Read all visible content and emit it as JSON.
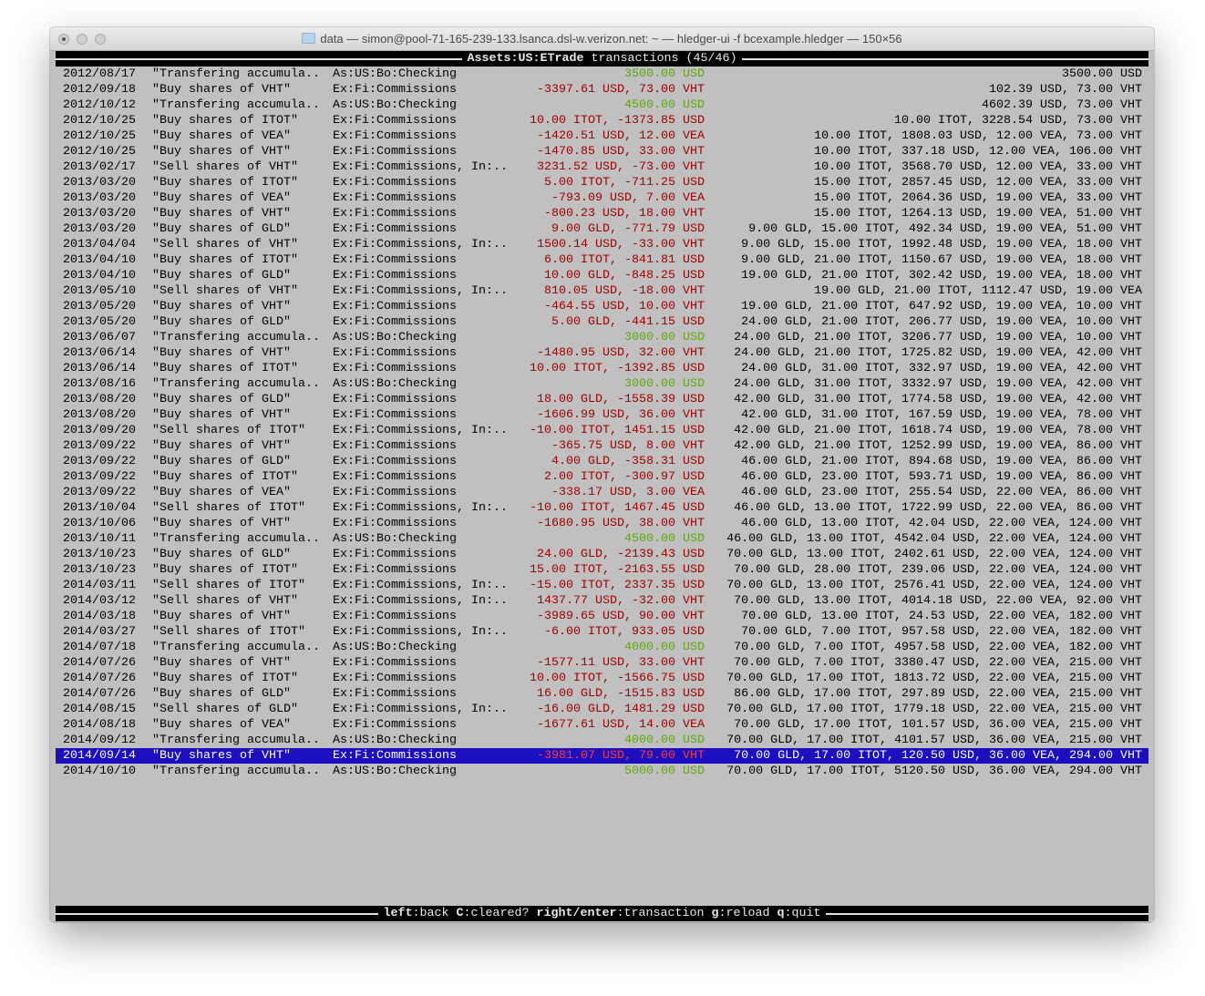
{
  "window": {
    "title": "data — simon@pool-71-165-239-133.lsanca.dsl-w.verizon.net: ~ — hledger-ui -f bcexample.hledger — 150×56"
  },
  "header": {
    "account": "Assets:US:ETrade",
    "rest": " transactions (45/46)"
  },
  "colors": {
    "positive": "#5ea80c",
    "negative": "#a00000",
    "selection_bg": "#1b0fbf",
    "terminal_bg": "#c0c0c0"
  },
  "selected_index": 44,
  "rows": [
    {
      "date": "2012/08/17",
      "desc": "\"Transfering accumula..",
      "acct": "As:US:Bo:Checking",
      "amt": "3500.00 USD",
      "bal": "3500.00 USD"
    },
    {
      "date": "2012/09/18",
      "desc": "\"Buy shares of VHT\"",
      "acct": "Ex:Fi:Commissions",
      "amt": "-3397.61 USD, 73.00 VHT",
      "bal": "102.39 USD, 73.00 VHT"
    },
    {
      "date": "2012/10/12",
      "desc": "\"Transfering accumula..",
      "acct": "As:US:Bo:Checking",
      "amt": "4500.00 USD",
      "bal": "4602.39 USD, 73.00 VHT"
    },
    {
      "date": "2012/10/25",
      "desc": "\"Buy shares of ITOT\"",
      "acct": "Ex:Fi:Commissions",
      "amt": "10.00 ITOT, -1373.85 USD",
      "bal": "10.00 ITOT, 3228.54 USD, 73.00 VHT"
    },
    {
      "date": "2012/10/25",
      "desc": "\"Buy shares of VEA\"",
      "acct": "Ex:Fi:Commissions",
      "amt": "-1420.51 USD, 12.00 VEA",
      "bal": "10.00 ITOT, 1808.03 USD, 12.00 VEA, 73.00 VHT"
    },
    {
      "date": "2012/10/25",
      "desc": "\"Buy shares of VHT\"",
      "acct": "Ex:Fi:Commissions",
      "amt": "-1470.85 USD, 33.00 VHT",
      "bal": "10.00 ITOT, 337.18 USD, 12.00 VEA, 106.00 VHT"
    },
    {
      "date": "2013/02/17",
      "desc": "\"Sell shares of VHT\"",
      "acct": "Ex:Fi:Commissions, In:..",
      "amt": "3231.52 USD, -73.00 VHT",
      "bal": "10.00 ITOT, 3568.70 USD, 12.00 VEA, 33.00 VHT"
    },
    {
      "date": "2013/03/20",
      "desc": "\"Buy shares of ITOT\"",
      "acct": "Ex:Fi:Commissions",
      "amt": "5.00 ITOT, -711.25 USD",
      "bal": "15.00 ITOT, 2857.45 USD, 12.00 VEA, 33.00 VHT"
    },
    {
      "date": "2013/03/20",
      "desc": "\"Buy shares of VEA\"",
      "acct": "Ex:Fi:Commissions",
      "amt": "-793.09 USD, 7.00 VEA",
      "bal": "15.00 ITOT, 2064.36 USD, 19.00 VEA, 33.00 VHT"
    },
    {
      "date": "2013/03/20",
      "desc": "\"Buy shares of VHT\"",
      "acct": "Ex:Fi:Commissions",
      "amt": "-800.23 USD, 18.00 VHT",
      "bal": "15.00 ITOT, 1264.13 USD, 19.00 VEA, 51.00 VHT"
    },
    {
      "date": "2013/03/20",
      "desc": "\"Buy shares of GLD\"",
      "acct": "Ex:Fi:Commissions",
      "amt": "9.00 GLD, -771.79 USD",
      "bal": "9.00 GLD, 15.00 ITOT, 492.34 USD, 19.00 VEA, 51.00 VHT"
    },
    {
      "date": "2013/04/04",
      "desc": "\"Sell shares of VHT\"",
      "acct": "Ex:Fi:Commissions, In:..",
      "amt": "1500.14 USD, -33.00 VHT",
      "bal": "9.00 GLD, 15.00 ITOT, 1992.48 USD, 19.00 VEA, 18.00 VHT"
    },
    {
      "date": "2013/04/10",
      "desc": "\"Buy shares of ITOT\"",
      "acct": "Ex:Fi:Commissions",
      "amt": "6.00 ITOT, -841.81 USD",
      "bal": "9.00 GLD, 21.00 ITOT, 1150.67 USD, 19.00 VEA, 18.00 VHT"
    },
    {
      "date": "2013/04/10",
      "desc": "\"Buy shares of GLD\"",
      "acct": "Ex:Fi:Commissions",
      "amt": "10.00 GLD, -848.25 USD",
      "bal": "19.00 GLD, 21.00 ITOT, 302.42 USD, 19.00 VEA, 18.00 VHT"
    },
    {
      "date": "2013/05/10",
      "desc": "\"Sell shares of VHT\"",
      "acct": "Ex:Fi:Commissions, In:..",
      "amt": "810.05 USD, -18.00 VHT",
      "bal": "19.00 GLD, 21.00 ITOT, 1112.47 USD, 19.00 VEA"
    },
    {
      "date": "2013/05/20",
      "desc": "\"Buy shares of VHT\"",
      "acct": "Ex:Fi:Commissions",
      "amt": "-464.55 USD, 10.00 VHT",
      "bal": "19.00 GLD, 21.00 ITOT, 647.92 USD, 19.00 VEA, 10.00 VHT"
    },
    {
      "date": "2013/05/20",
      "desc": "\"Buy shares of GLD\"",
      "acct": "Ex:Fi:Commissions",
      "amt": "5.00 GLD, -441.15 USD",
      "bal": "24.00 GLD, 21.00 ITOT, 206.77 USD, 19.00 VEA, 10.00 VHT"
    },
    {
      "date": "2013/06/07",
      "desc": "\"Transfering accumula..",
      "acct": "As:US:Bo:Checking",
      "amt": "3000.00 USD",
      "bal": "24.00 GLD, 21.00 ITOT, 3206.77 USD, 19.00 VEA, 10.00 VHT"
    },
    {
      "date": "2013/06/14",
      "desc": "\"Buy shares of VHT\"",
      "acct": "Ex:Fi:Commissions",
      "amt": "-1480.95 USD, 32.00 VHT",
      "bal": "24.00 GLD, 21.00 ITOT, 1725.82 USD, 19.00 VEA, 42.00 VHT"
    },
    {
      "date": "2013/06/14",
      "desc": "\"Buy shares of ITOT\"",
      "acct": "Ex:Fi:Commissions",
      "amt": "10.00 ITOT, -1392.85 USD",
      "bal": "24.00 GLD, 31.00 ITOT, 332.97 USD, 19.00 VEA, 42.00 VHT"
    },
    {
      "date": "2013/08/16",
      "desc": "\"Transfering accumula..",
      "acct": "As:US:Bo:Checking",
      "amt": "3000.00 USD",
      "bal": "24.00 GLD, 31.00 ITOT, 3332.97 USD, 19.00 VEA, 42.00 VHT"
    },
    {
      "date": "2013/08/20",
      "desc": "\"Buy shares of GLD\"",
      "acct": "Ex:Fi:Commissions",
      "amt": "18.00 GLD, -1558.39 USD",
      "bal": "42.00 GLD, 31.00 ITOT, 1774.58 USD, 19.00 VEA, 42.00 VHT"
    },
    {
      "date": "2013/08/20",
      "desc": "\"Buy shares of VHT\"",
      "acct": "Ex:Fi:Commissions",
      "amt": "-1606.99 USD, 36.00 VHT",
      "bal": "42.00 GLD, 31.00 ITOT, 167.59 USD, 19.00 VEA, 78.00 VHT"
    },
    {
      "date": "2013/09/20",
      "desc": "\"Sell shares of ITOT\"",
      "acct": "Ex:Fi:Commissions, In:..",
      "amt": "-10.00 ITOT, 1451.15 USD",
      "bal": "42.00 GLD, 21.00 ITOT, 1618.74 USD, 19.00 VEA, 78.00 VHT"
    },
    {
      "date": "2013/09/22",
      "desc": "\"Buy shares of VHT\"",
      "acct": "Ex:Fi:Commissions",
      "amt": "-365.75 USD, 8.00 VHT",
      "bal": "42.00 GLD, 21.00 ITOT, 1252.99 USD, 19.00 VEA, 86.00 VHT"
    },
    {
      "date": "2013/09/22",
      "desc": "\"Buy shares of GLD\"",
      "acct": "Ex:Fi:Commissions",
      "amt": "4.00 GLD, -358.31 USD",
      "bal": "46.00 GLD, 21.00 ITOT, 894.68 USD, 19.00 VEA, 86.00 VHT"
    },
    {
      "date": "2013/09/22",
      "desc": "\"Buy shares of ITOT\"",
      "acct": "Ex:Fi:Commissions",
      "amt": "2.00 ITOT, -300.97 USD",
      "bal": "46.00 GLD, 23.00 ITOT, 593.71 USD, 19.00 VEA, 86.00 VHT"
    },
    {
      "date": "2013/09/22",
      "desc": "\"Buy shares of VEA\"",
      "acct": "Ex:Fi:Commissions",
      "amt": "-338.17 USD, 3.00 VEA",
      "bal": "46.00 GLD, 23.00 ITOT, 255.54 USD, 22.00 VEA, 86.00 VHT"
    },
    {
      "date": "2013/10/04",
      "desc": "\"Sell shares of ITOT\"",
      "acct": "Ex:Fi:Commissions, In:..",
      "amt": "-10.00 ITOT, 1467.45 USD",
      "bal": "46.00 GLD, 13.00 ITOT, 1722.99 USD, 22.00 VEA, 86.00 VHT"
    },
    {
      "date": "2013/10/06",
      "desc": "\"Buy shares of VHT\"",
      "acct": "Ex:Fi:Commissions",
      "amt": "-1680.95 USD, 38.00 VHT",
      "bal": "46.00 GLD, 13.00 ITOT, 42.04 USD, 22.00 VEA, 124.00 VHT"
    },
    {
      "date": "2013/10/11",
      "desc": "\"Transfering accumula..",
      "acct": "As:US:Bo:Checking",
      "amt": "4500.00 USD",
      "bal": "46.00 GLD, 13.00 ITOT, 4542.04 USD, 22.00 VEA, 124.00 VHT"
    },
    {
      "date": "2013/10/23",
      "desc": "\"Buy shares of GLD\"",
      "acct": "Ex:Fi:Commissions",
      "amt": "24.00 GLD, -2139.43 USD",
      "bal": "70.00 GLD, 13.00 ITOT, 2402.61 USD, 22.00 VEA, 124.00 VHT"
    },
    {
      "date": "2013/10/23",
      "desc": "\"Buy shares of ITOT\"",
      "acct": "Ex:Fi:Commissions",
      "amt": "15.00 ITOT, -2163.55 USD",
      "bal": "70.00 GLD, 28.00 ITOT, 239.06 USD, 22.00 VEA, 124.00 VHT"
    },
    {
      "date": "2014/03/11",
      "desc": "\"Sell shares of ITOT\"",
      "acct": "Ex:Fi:Commissions, In:..",
      "amt": "-15.00 ITOT, 2337.35 USD",
      "bal": "70.00 GLD, 13.00 ITOT, 2576.41 USD, 22.00 VEA, 124.00 VHT"
    },
    {
      "date": "2014/03/12",
      "desc": "\"Sell shares of VHT\"",
      "acct": "Ex:Fi:Commissions, In:..",
      "amt": "1437.77 USD, -32.00 VHT",
      "bal": "70.00 GLD, 13.00 ITOT, 4014.18 USD, 22.00 VEA, 92.00 VHT"
    },
    {
      "date": "2014/03/18",
      "desc": "\"Buy shares of VHT\"",
      "acct": "Ex:Fi:Commissions",
      "amt": "-3989.65 USD, 90.00 VHT",
      "bal": "70.00 GLD, 13.00 ITOT, 24.53 USD, 22.00 VEA, 182.00 VHT"
    },
    {
      "date": "2014/03/27",
      "desc": "\"Sell shares of ITOT\"",
      "acct": "Ex:Fi:Commissions, In:..",
      "amt": "-6.00 ITOT, 933.05 USD",
      "bal": "70.00 GLD, 7.00 ITOT, 957.58 USD, 22.00 VEA, 182.00 VHT"
    },
    {
      "date": "2014/07/18",
      "desc": "\"Transfering accumula..",
      "acct": "As:US:Bo:Checking",
      "amt": "4000.00 USD",
      "bal": "70.00 GLD, 7.00 ITOT, 4957.58 USD, 22.00 VEA, 182.00 VHT"
    },
    {
      "date": "2014/07/26",
      "desc": "\"Buy shares of VHT\"",
      "acct": "Ex:Fi:Commissions",
      "amt": "-1577.11 USD, 33.00 VHT",
      "bal": "70.00 GLD, 7.00 ITOT, 3380.47 USD, 22.00 VEA, 215.00 VHT"
    },
    {
      "date": "2014/07/26",
      "desc": "\"Buy shares of ITOT\"",
      "acct": "Ex:Fi:Commissions",
      "amt": "10.00 ITOT, -1566.75 USD",
      "bal": "70.00 GLD, 17.00 ITOT, 1813.72 USD, 22.00 VEA, 215.00 VHT"
    },
    {
      "date": "2014/07/26",
      "desc": "\"Buy shares of GLD\"",
      "acct": "Ex:Fi:Commissions",
      "amt": "16.00 GLD, -1515.83 USD",
      "bal": "86.00 GLD, 17.00 ITOT, 297.89 USD, 22.00 VEA, 215.00 VHT"
    },
    {
      "date": "2014/08/15",
      "desc": "\"Sell shares of GLD\"",
      "acct": "Ex:Fi:Commissions, In:..",
      "amt": "-16.00 GLD, 1481.29 USD",
      "bal": "70.00 GLD, 17.00 ITOT, 1779.18 USD, 22.00 VEA, 215.00 VHT"
    },
    {
      "date": "2014/08/18",
      "desc": "\"Buy shares of VEA\"",
      "acct": "Ex:Fi:Commissions",
      "amt": "-1677.61 USD, 14.00 VEA",
      "bal": "70.00 GLD, 17.00 ITOT, 101.57 USD, 36.00 VEA, 215.00 VHT"
    },
    {
      "date": "2014/09/12",
      "desc": "\"Transfering accumula..",
      "acct": "As:US:Bo:Checking",
      "amt": "4000.00 USD",
      "bal": "70.00 GLD, 17.00 ITOT, 4101.57 USD, 36.00 VEA, 215.00 VHT"
    },
    {
      "date": "2014/09/14",
      "desc": "\"Buy shares of VHT\"",
      "acct": "Ex:Fi:Commissions",
      "amt": "-3981.07 USD, 79.00 VHT",
      "bal": "70.00 GLD, 17.00 ITOT, 120.50 USD, 36.00 VEA, 294.00 VHT"
    },
    {
      "date": "2014/10/10",
      "desc": "\"Transfering accumula..",
      "acct": "As:US:Bo:Checking",
      "amt": "5000.00 USD",
      "bal": "70.00 GLD, 17.00 ITOT, 5120.50 USD, 36.00 VEA, 294.00 VHT"
    }
  ],
  "footer": {
    "keys": [
      {
        "key": "left",
        "action": "back"
      },
      {
        "key": "C",
        "action": "cleared?"
      },
      {
        "key": "right/enter",
        "action": "transaction"
      },
      {
        "key": "g",
        "action": "reload"
      },
      {
        "key": "q",
        "action": "quit"
      }
    ]
  }
}
